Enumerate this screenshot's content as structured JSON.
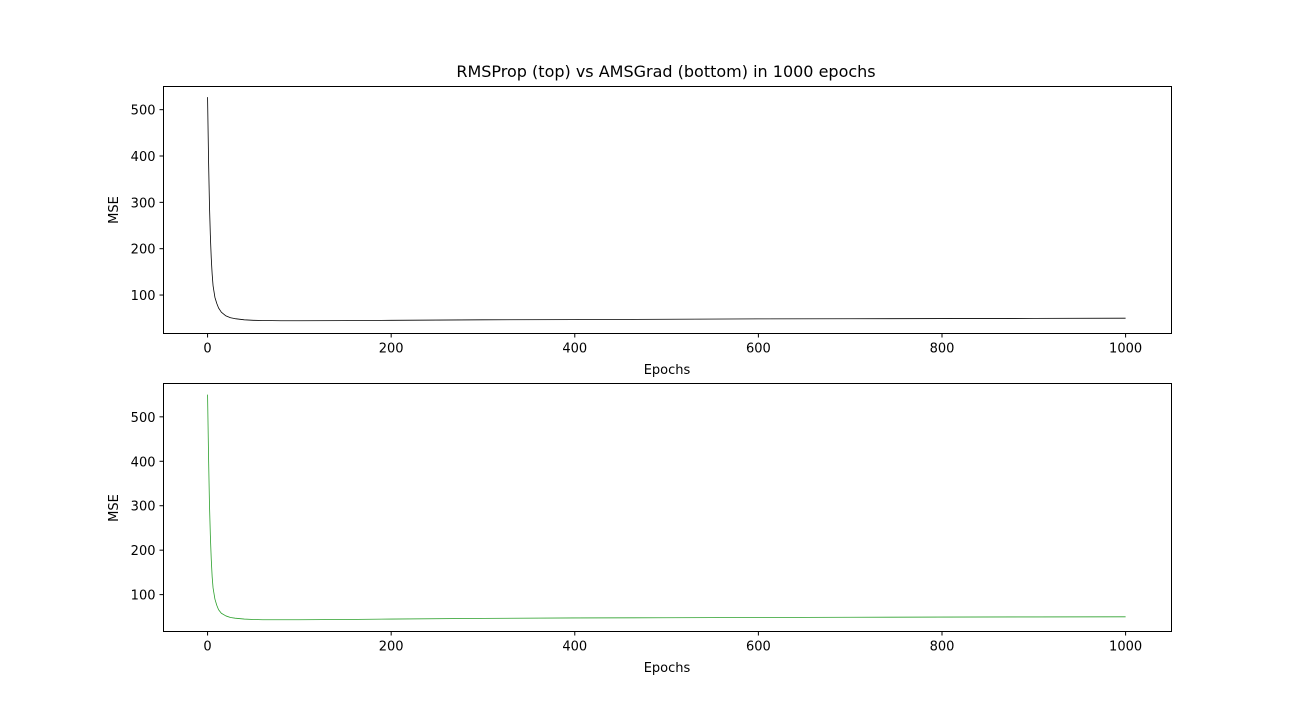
{
  "chart_data": [
    {
      "type": "line",
      "title": "RMSProp (top) vs AMSGrad (bottom) in 1000 epochs",
      "xlabel": "Epochs",
      "ylabel": "MSE",
      "xlim": [
        -48,
        1050
      ],
      "ylim": [
        17,
        550
      ],
      "xticks": [
        0,
        200,
        400,
        600,
        800,
        1000
      ],
      "yticks": [
        100,
        200,
        300,
        400,
        500
      ],
      "grid": false,
      "series": [
        {
          "color": "#000000",
          "x": [
            0,
            1,
            2,
            3,
            4,
            5,
            6,
            8,
            10,
            12,
            15,
            20,
            25,
            30,
            40,
            50,
            60,
            80,
            100,
            150,
            200,
            300,
            400,
            500,
            600,
            700,
            800,
            900,
            1000
          ],
          "y": [
            527,
            400,
            300,
            230,
            180,
            145,
            120,
            95,
            82,
            72,
            63,
            55,
            51,
            49,
            46.5,
            45.5,
            45,
            44.5,
            44.5,
            44.8,
            45.5,
            46.5,
            47,
            47.8,
            48.5,
            48.8,
            49.2,
            49.6,
            50
          ]
        }
      ]
    },
    {
      "type": "line",
      "title": "",
      "xlabel": "Epochs",
      "ylabel": "MSE",
      "xlim": [
        -48,
        1050
      ],
      "ylim": [
        17,
        575
      ],
      "xticks": [
        0,
        200,
        400,
        600,
        800,
        1000
      ],
      "yticks": [
        100,
        200,
        300,
        400,
        500
      ],
      "grid": false,
      "series": [
        {
          "color": "#2ca02c",
          "x": [
            0,
            1,
            2,
            3,
            4,
            5,
            6,
            8,
            10,
            12,
            15,
            20,
            25,
            30,
            40,
            50,
            60,
            80,
            100,
            150,
            200,
            300,
            400,
            500,
            600,
            700,
            800,
            900,
            1000
          ],
          "y": [
            550,
            420,
            310,
            235,
            180,
            140,
            115,
            90,
            76,
            66,
            58,
            52,
            48.5,
            47,
            45,
            44,
            43.5,
            43.5,
            43.5,
            44,
            45,
            46.5,
            47.5,
            48,
            48.5,
            49,
            49.5,
            49.8,
            50
          ]
        }
      ]
    }
  ]
}
